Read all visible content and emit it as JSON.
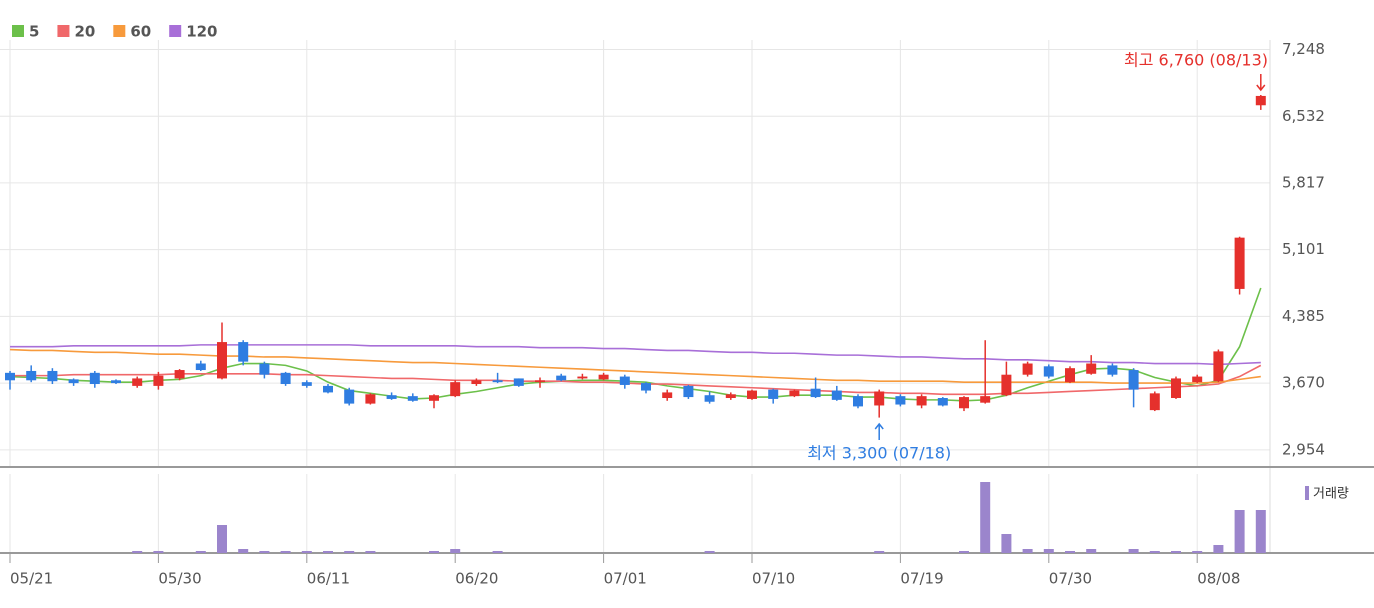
{
  "chart_data": [
    {
      "type": "candlestick",
      "categories": [
        "05/21",
        null,
        null,
        null,
        null,
        null,
        null,
        "05/30",
        null,
        null,
        null,
        null,
        null,
        null,
        "06/11",
        null,
        null,
        null,
        null,
        null,
        null,
        "06/20",
        null,
        null,
        null,
        null,
        null,
        null,
        "07/01",
        null,
        null,
        null,
        null,
        null,
        null,
        "07/10",
        null,
        null,
        null,
        null,
        null,
        null,
        "07/19",
        null,
        null,
        null,
        null,
        null,
        null,
        "07/30",
        null,
        null,
        null,
        null,
        null,
        null,
        "08/08",
        null,
        null,
        null
      ],
      "open": [
        3780,
        3800,
        3800,
        3710,
        3780,
        3700,
        3640,
        3640,
        3720,
        3880,
        3720,
        4110,
        3880,
        3780,
        3680,
        3640,
        3600,
        3450,
        3540,
        3530,
        3480,
        3530,
        3660,
        3700,
        3720,
        3680,
        3750,
        3720,
        3710,
        3740,
        3670,
        3510,
        3640,
        3540,
        3510,
        3500,
        3600,
        3530,
        3610,
        3590,
        3530,
        3430,
        3530,
        3430,
        3510,
        3400,
        3460,
        3540,
        3760,
        3850,
        3680,
        3770,
        3860,
        3810,
        3380,
        3510,
        3680,
        3690,
        4680,
        6650
      ],
      "high": [
        3800,
        3860,
        3830,
        3720,
        3800,
        3710,
        3740,
        3790,
        3820,
        3910,
        4320,
        4130,
        3900,
        3790,
        3700,
        3660,
        3620,
        3560,
        3570,
        3560,
        3550,
        3700,
        3720,
        3780,
        3720,
        3730,
        3770,
        3770,
        3780,
        3760,
        3680,
        3600,
        3650,
        3580,
        3570,
        3600,
        3610,
        3600,
        3730,
        3640,
        3550,
        3600,
        3550,
        3550,
        3520,
        3530,
        4130,
        3900,
        3900,
        3870,
        3850,
        3970,
        3880,
        3830,
        3580,
        3740,
        3760,
        4030,
        5240,
        6760
      ],
      "low": [
        3600,
        3680,
        3660,
        3640,
        3620,
        3660,
        3620,
        3600,
        3700,
        3800,
        3710,
        3860,
        3720,
        3640,
        3620,
        3560,
        3430,
        3440,
        3490,
        3470,
        3400,
        3520,
        3640,
        3670,
        3630,
        3620,
        3690,
        3710,
        3700,
        3610,
        3560,
        3480,
        3500,
        3450,
        3490,
        3490,
        3450,
        3520,
        3510,
        3480,
        3400,
        3300,
        3420,
        3400,
        3420,
        3370,
        3450,
        3530,
        3740,
        3720,
        3670,
        3760,
        3740,
        3410,
        3370,
        3500,
        3670,
        3680,
        4620,
        6600
      ],
      "close": [
        3700,
        3700,
        3690,
        3670,
        3660,
        3670,
        3720,
        3750,
        3810,
        3810,
        4110,
        3900,
        3760,
        3660,
        3640,
        3570,
        3450,
        3550,
        3500,
        3480,
        3540,
        3680,
        3700,
        3680,
        3640,
        3700,
        3700,
        3740,
        3760,
        3650,
        3590,
        3570,
        3520,
        3470,
        3550,
        3590,
        3500,
        3590,
        3520,
        3490,
        3420,
        3580,
        3440,
        3530,
        3430,
        3520,
        3530,
        3760,
        3880,
        3740,
        3830,
        3880,
        3760,
        3600,
        3560,
        3720,
        3740,
        4010,
        5230,
        6750
      ],
      "up_color": "#e5302c",
      "down_color": "#2f7de1",
      "series": [
        {
          "name": "5",
          "color": "#6cc04a",
          "values": [
            3740,
            3730,
            3720,
            3700,
            3690,
            3680,
            3680,
            3700,
            3710,
            3750,
            3830,
            3880,
            3880,
            3860,
            3800,
            3680,
            3590,
            3560,
            3530,
            3500,
            3510,
            3550,
            3580,
            3620,
            3660,
            3680,
            3690,
            3700,
            3700,
            3690,
            3680,
            3640,
            3610,
            3580,
            3540,
            3520,
            3520,
            3540,
            3540,
            3540,
            3520,
            3520,
            3500,
            3490,
            3490,
            3480,
            3490,
            3540,
            3620,
            3690,
            3760,
            3820,
            3830,
            3810,
            3730,
            3680,
            3640,
            3700,
            4060,
            4690
          ]
        },
        {
          "name": "20",
          "color": "#f0686a",
          "values": [
            3750,
            3750,
            3750,
            3760,
            3760,
            3760,
            3760,
            3760,
            3770,
            3770,
            3770,
            3770,
            3770,
            3760,
            3760,
            3750,
            3740,
            3730,
            3720,
            3720,
            3710,
            3700,
            3700,
            3700,
            3690,
            3690,
            3690,
            3680,
            3680,
            3670,
            3660,
            3660,
            3650,
            3640,
            3630,
            3620,
            3610,
            3600,
            3590,
            3580,
            3570,
            3570,
            3560,
            3560,
            3550,
            3550,
            3550,
            3560,
            3560,
            3570,
            3580,
            3590,
            3600,
            3610,
            3620,
            3630,
            3640,
            3660,
            3740,
            3860
          ]
        },
        {
          "name": "60",
          "color": "#f79a3c",
          "values": [
            4030,
            4020,
            4020,
            4010,
            4000,
            4000,
            3990,
            3980,
            3980,
            3970,
            3960,
            3960,
            3950,
            3950,
            3940,
            3930,
            3920,
            3910,
            3900,
            3890,
            3890,
            3880,
            3870,
            3860,
            3850,
            3840,
            3830,
            3820,
            3810,
            3800,
            3790,
            3780,
            3770,
            3760,
            3750,
            3740,
            3730,
            3720,
            3710,
            3700,
            3700,
            3690,
            3690,
            3690,
            3690,
            3680,
            3680,
            3680,
            3680,
            3680,
            3680,
            3680,
            3670,
            3670,
            3670,
            3670,
            3670,
            3680,
            3710,
            3740
          ]
        },
        {
          "name": "120",
          "color": "#a86fd8",
          "values": [
            4060,
            4060,
            4060,
            4070,
            4070,
            4070,
            4070,
            4070,
            4070,
            4080,
            4080,
            4080,
            4080,
            4080,
            4080,
            4080,
            4080,
            4070,
            4070,
            4070,
            4070,
            4070,
            4060,
            4060,
            4060,
            4050,
            4050,
            4050,
            4040,
            4040,
            4030,
            4020,
            4020,
            4010,
            4000,
            4000,
            3990,
            3990,
            3980,
            3970,
            3970,
            3960,
            3950,
            3950,
            3940,
            3930,
            3930,
            3920,
            3920,
            3910,
            3900,
            3900,
            3890,
            3890,
            3880,
            3880,
            3880,
            3870,
            3880,
            3890
          ]
        }
      ],
      "ylim": [
        2770,
        7350
      ],
      "yticks": [
        {
          "value": 7248,
          "label": "7,248"
        },
        {
          "value": 6532,
          "label": "6,532"
        },
        {
          "value": 5817,
          "label": "5,817"
        },
        {
          "value": 5101,
          "label": "5,101"
        },
        {
          "value": 4385,
          "label": "4,385"
        },
        {
          "value": 3670,
          "label": "3,670"
        },
        {
          "value": 2954,
          "label": "2,954"
        }
      ],
      "grid": true,
      "annotations": [
        {
          "text": "최고 6,760 (08/13)",
          "color": "#e5302c"
        },
        {
          "text": "최저 3,300 (07/18)",
          "color": "#2f7de1"
        }
      ]
    },
    {
      "type": "bar",
      "name": "거래량",
      "color": "#9b85cc",
      "values": [
        0,
        0,
        0,
        0,
        0,
        0,
        2,
        2,
        0,
        2,
        28,
        4,
        2,
        2,
        2,
        2,
        2,
        2,
        0,
        0,
        2,
        4,
        0,
        2,
        0,
        0,
        0,
        0,
        0,
        0,
        0,
        0,
        0,
        2,
        0,
        0,
        0,
        0,
        0,
        0,
        0,
        2,
        0,
        0,
        0,
        2,
        71,
        19,
        4,
        4,
        2,
        4,
        0,
        4,
        2,
        2,
        2,
        8,
        43,
        43
      ],
      "ylim": [
        0,
        75
      ]
    }
  ]
}
